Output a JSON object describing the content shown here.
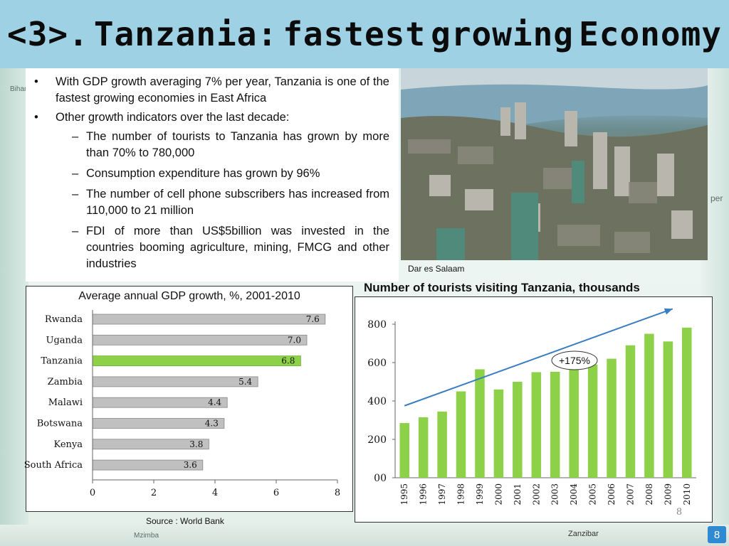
{
  "slide": {
    "title_words": [
      "<3>.",
      "Tanzania:",
      "fastest",
      "growing",
      "Economy"
    ],
    "page_number": "8"
  },
  "bullets": [
    {
      "level": 1,
      "text": "With GDP growth averaging 7% per year, Tanzania is one of the fastest growing economies in East Africa"
    },
    {
      "level": 1,
      "text": "Other growth indicators over the last decade:"
    },
    {
      "level": 2,
      "text": "The number of tourists to Tanzania has grown by more than 70% to 780,000"
    },
    {
      "level": 2,
      "text": "Consumption expenditure has grown by 96%"
    },
    {
      "level": 2,
      "text": "The number of cell phone subscribers has increased from 110,000 to 21 million"
    },
    {
      "level": 2,
      "text": "FDI of more than US$5billion was invested in the countries booming agriculture, mining, FMCG and other industries"
    }
  ],
  "photo": {
    "caption": "Dar es Salaam"
  },
  "source": "Source : World Bank",
  "map_labels": {
    "bottom_left": "Mzimba",
    "bottom_right": "Zanzibar",
    "top_left": "Bihamalo",
    "right_mid": "per"
  },
  "colors": {
    "title_bar": "#9fd1e4",
    "bar_grey": "#c0c0c0",
    "bar_green": "#8cd147",
    "tour_green": "#8cd147",
    "arrow": "#3a7ec2",
    "page_badge": "#2f8ad1"
  },
  "chart_data": [
    {
      "type": "bar",
      "orientation": "horizontal",
      "title": "Average annual GDP growth, %, 2001-2010",
      "categories": [
        "Rwanda",
        "Uganda",
        "Tanzania",
        "Zambia",
        "Malawi",
        "Botswana",
        "Kenya",
        "South Africa"
      ],
      "values": [
        7.6,
        7.0,
        6.8,
        5.4,
        4.4,
        4.3,
        3.8,
        3.6
      ],
      "value_labels": [
        "7.6",
        "7.0",
        "6.8",
        "5.4",
        "4.4",
        "4.3",
        "3.8",
        "3.6"
      ],
      "highlight": "Tanzania",
      "xlim": [
        0,
        8
      ],
      "xticks": [
        "0",
        "2",
        "4",
        "6",
        "8"
      ],
      "grid": false
    },
    {
      "type": "bar",
      "title": "Number of tourists visiting Tanzania, thousands",
      "categories": [
        "1995",
        "1996",
        "1997",
        "1998",
        "1999",
        "2000",
        "2001",
        "2002",
        "2003",
        "2004",
        "2005",
        "2006",
        "2007",
        "2008",
        "2009",
        "2010"
      ],
      "values": [
        285,
        315,
        345,
        450,
        565,
        460,
        500,
        550,
        552,
        580,
        590,
        620,
        690,
        750,
        710,
        782
      ],
      "ylim": [
        0,
        800
      ],
      "yticks": [
        "00",
        "200",
        "400",
        "600",
        "800"
      ],
      "annotation": "+175%",
      "trend_arrow": {
        "from_year": "1995",
        "from_value": 375,
        "to_year": "2010",
        "to_value": 880
      },
      "corner_label": "8",
      "grid": false
    }
  ]
}
